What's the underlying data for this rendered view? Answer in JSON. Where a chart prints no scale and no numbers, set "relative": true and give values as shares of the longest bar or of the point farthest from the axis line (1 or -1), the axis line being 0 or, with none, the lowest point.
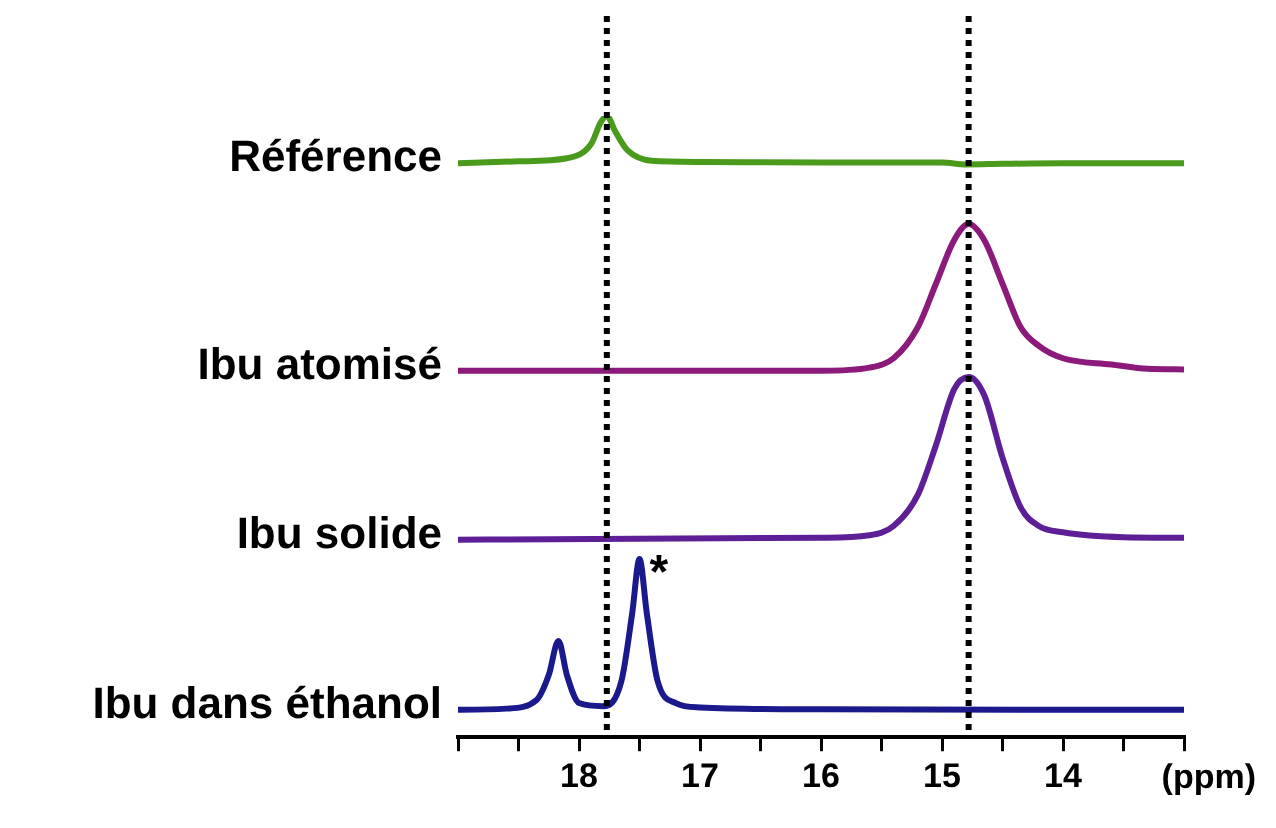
{
  "chart_data": {
    "type": "line",
    "relative": true,
    "xlabel": "(ppm)",
    "xlim": [
      19,
      13
    ],
    "xticks": [
      {
        "value": 19,
        "label": null
      },
      {
        "value": 18.5,
        "label": null
      },
      18,
      {
        "value": 17.5,
        "label": null
      },
      17,
      {
        "value": 16.5,
        "label": null
      },
      16,
      {
        "value": 15.5,
        "label": null
      },
      15,
      {
        "value": 14.5,
        "label": null
      },
      14,
      {
        "value": 13.5,
        "label": null
      },
      {
        "value": 13,
        "label": null
      }
    ],
    "grid": false,
    "legend": false,
    "marker": "none",
    "line_style": "solid",
    "ref_lines": [
      {
        "axis": "x",
        "value": 17.77,
        "color": "#000000",
        "line_style": "dotted"
      },
      {
        "axis": "x",
        "value": 14.78,
        "color": "#000000",
        "line_style": "dotted"
      }
    ],
    "annotations": [
      {
        "text": "*",
        "x": 17.5,
        "y": 0.287
      }
    ],
    "series": [
      {
        "name": "Référence",
        "color": "#4a9a1c",
        "x": [
          19,
          18.5,
          18.1,
          17.9,
          17.82,
          17.77,
          17.7,
          17.6,
          17.4,
          17,
          16,
          15,
          14.8,
          14.5,
          14,
          13.5,
          13
        ],
        "values": [
          0.924,
          0.927,
          0.932,
          0.955,
          0.99,
          1,
          0.975,
          0.945,
          0.928,
          0.926,
          0.925,
          0.925,
          0.922,
          0.923,
          0.924,
          0.924,
          0.924
        ]
      },
      {
        "name": "Ibu atomisé",
        "color": "#8b1a7a",
        "x": [
          19,
          16,
          15.6,
          15.4,
          15.2,
          15.05,
          14.9,
          14.78,
          14.65,
          14.5,
          14.35,
          14.2,
          14,
          13.6,
          13.3,
          13
        ],
        "values": [
          0.59,
          0.59,
          0.595,
          0.61,
          0.66,
          0.73,
          0.8,
          0.826,
          0.8,
          0.73,
          0.66,
          0.63,
          0.61,
          0.6,
          0.593,
          0.592
        ]
      },
      {
        "name": "Ibu solide",
        "color": "#5e1f96",
        "x": [
          19,
          16,
          15.6,
          15.4,
          15.2,
          15.05,
          14.9,
          14.78,
          14.65,
          14.5,
          14.35,
          14.2,
          14,
          13.5,
          13
        ],
        "values": [
          0.318,
          0.321,
          0.325,
          0.34,
          0.39,
          0.47,
          0.56,
          0.58,
          0.55,
          0.45,
          0.37,
          0.34,
          0.33,
          0.322,
          0.321
        ]
      },
      {
        "name": "Ibu dans éthanol",
        "color": "#1a1a8c",
        "x": [
          19,
          18.6,
          18.35,
          18.25,
          18.17,
          18.1,
          18,
          17.8,
          17.65,
          17.56,
          17.5,
          17.44,
          17.35,
          17.2,
          17,
          16,
          13
        ],
        "values": [
          0.044,
          0.046,
          0.06,
          0.1,
          0.155,
          0.1,
          0.055,
          0.05,
          0.09,
          0.2,
          0.287,
          0.2,
          0.09,
          0.055,
          0.048,
          0.045,
          0.044
        ]
      }
    ]
  }
}
